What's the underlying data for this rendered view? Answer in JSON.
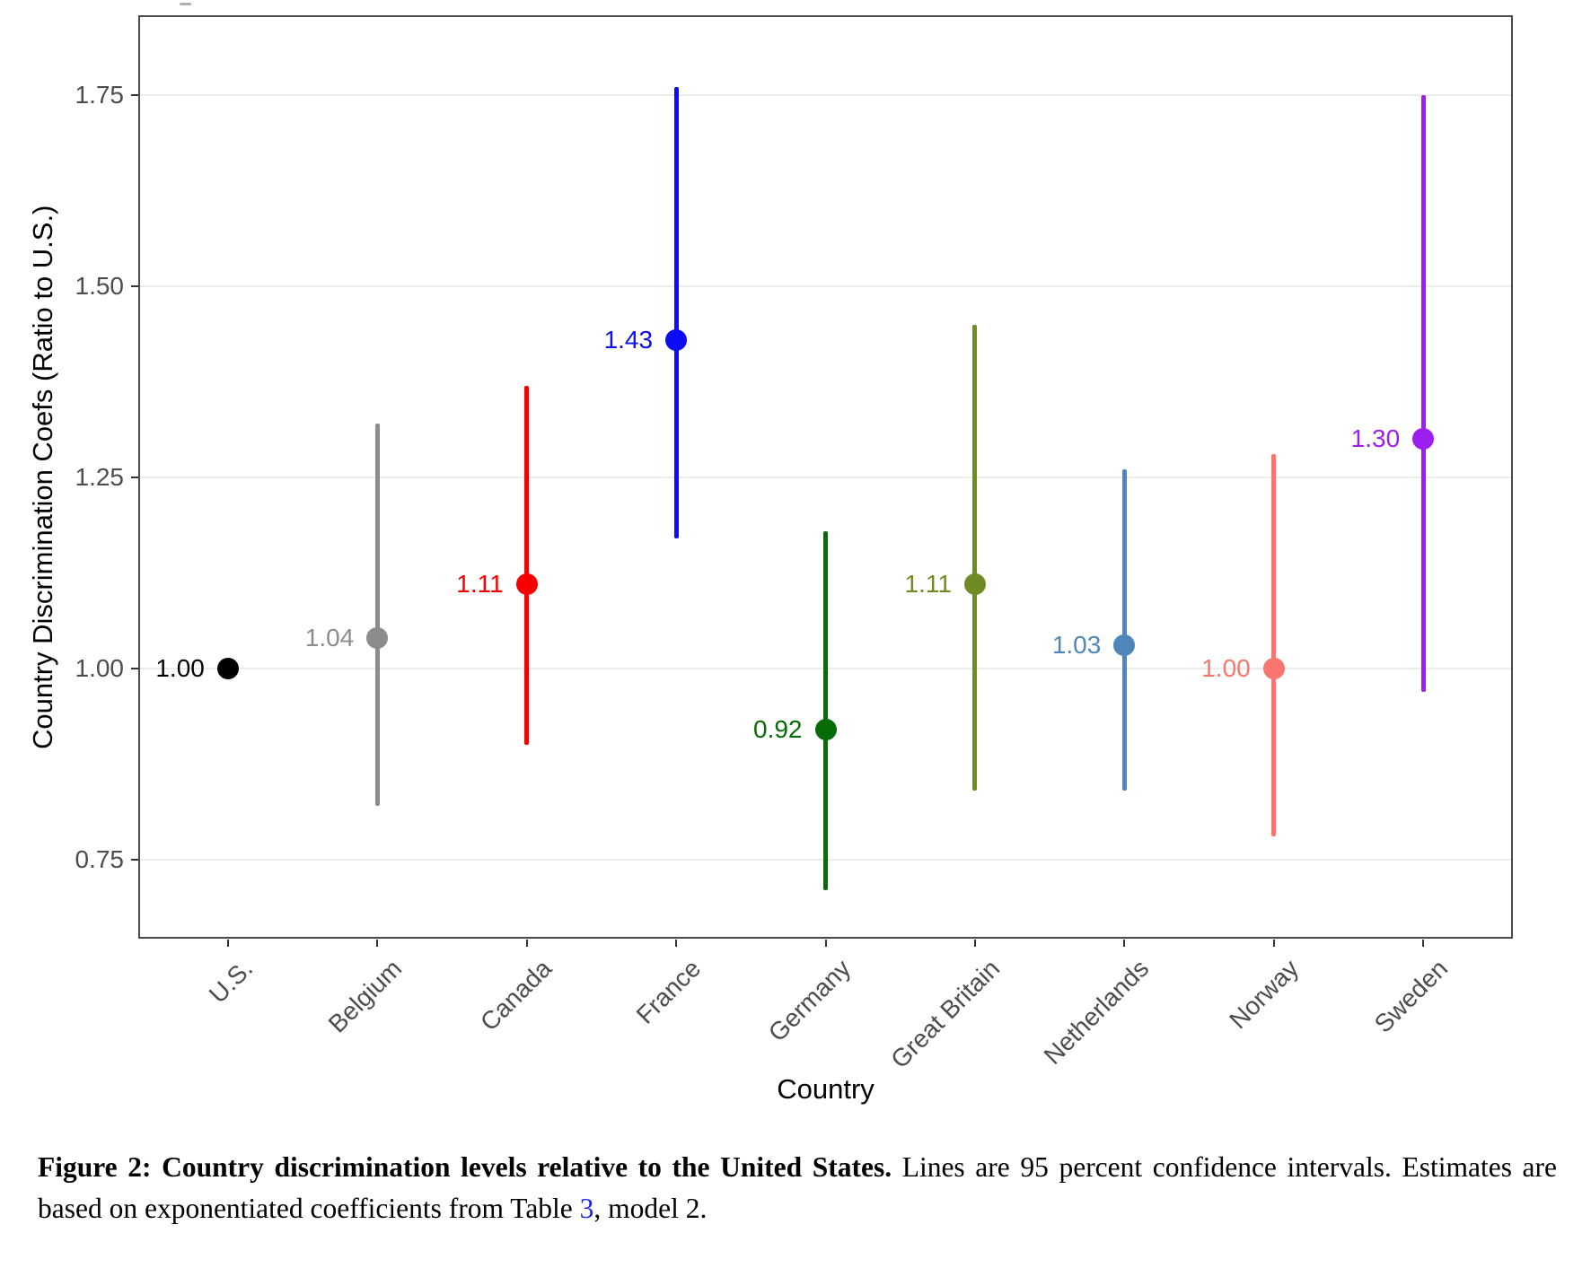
{
  "figure": {
    "y_axis_title": "Country Discrimination Coefs (Ratio to U.S.)",
    "x_axis_title": "Country"
  },
  "caption": {
    "figure_label": "Figure 2:",
    "bold_text": "Country discrimination levels relative to the United States.",
    "text_before_link": "Lines are 95 percent confidence intervals. Estimates are based on exponentiated coefficients from Table ",
    "link_text": "3",
    "text_after_link": ", model 2.",
    "link_color": "#2323ee"
  },
  "chart_data": {
    "type": "scatter",
    "title": "",
    "xlabel": "Country",
    "ylabel": "Country Discrimination Coefs (Ratio to U.S.)",
    "ylim": [
      0.65,
      1.85
    ],
    "yticks": [
      0.75,
      1.0,
      1.25,
      1.5,
      1.75
    ],
    "ytick_labels": [
      "0.75",
      "1.00",
      "1.25",
      "1.50",
      "1.75"
    ],
    "grid": "horizontal-major-only",
    "legend": "none",
    "error_bars": "95 percent confidence intervals",
    "categories": [
      "U.S.",
      "Belgium",
      "Canada",
      "France",
      "Germany",
      "Great Britain",
      "Netherlands",
      "Norway",
      "Sweden"
    ],
    "series": [
      {
        "name": "Country discrimination coefficient (ratio to U.S.)",
        "points": [
          {
            "country": "U.S.",
            "value": 1.0,
            "label": "1.00",
            "ci_low": null,
            "ci_high": null,
            "color": "#000000"
          },
          {
            "country": "Belgium",
            "value": 1.04,
            "label": "1.04",
            "ci_low": 0.82,
            "ci_high": 1.32,
            "color": "#8c8c8c"
          },
          {
            "country": "Canada",
            "value": 1.11,
            "label": "1.11",
            "ci_low": 0.9,
            "ci_high": 1.37,
            "color": "#f80000"
          },
          {
            "country": "France",
            "value": 1.43,
            "label": "1.43",
            "ci_low": 1.17,
            "ci_high": 1.76,
            "color": "#0d0df5"
          },
          {
            "country": "Germany",
            "value": 0.92,
            "label": "0.92",
            "ci_low": 0.71,
            "ci_high": 1.18,
            "color": "#076b07"
          },
          {
            "country": "Great Britain",
            "value": 1.11,
            "label": "1.11",
            "ci_low": 0.84,
            "ci_high": 1.45,
            "color": "#6f8b24"
          },
          {
            "country": "Netherlands",
            "value": 1.03,
            "label": "1.03",
            "ci_low": 0.84,
            "ci_high": 1.26,
            "color": "#4f87bb"
          },
          {
            "country": "Norway",
            "value": 1.0,
            "label": "1.00",
            "ci_low": 0.78,
            "ci_high": 1.28,
            "color": "#f8766d"
          },
          {
            "country": "Sweden",
            "value": 1.3,
            "label": "1.30",
            "ci_low": 0.97,
            "ci_high": 1.75,
            "color": "#9c1ff0"
          }
        ]
      }
    ]
  }
}
